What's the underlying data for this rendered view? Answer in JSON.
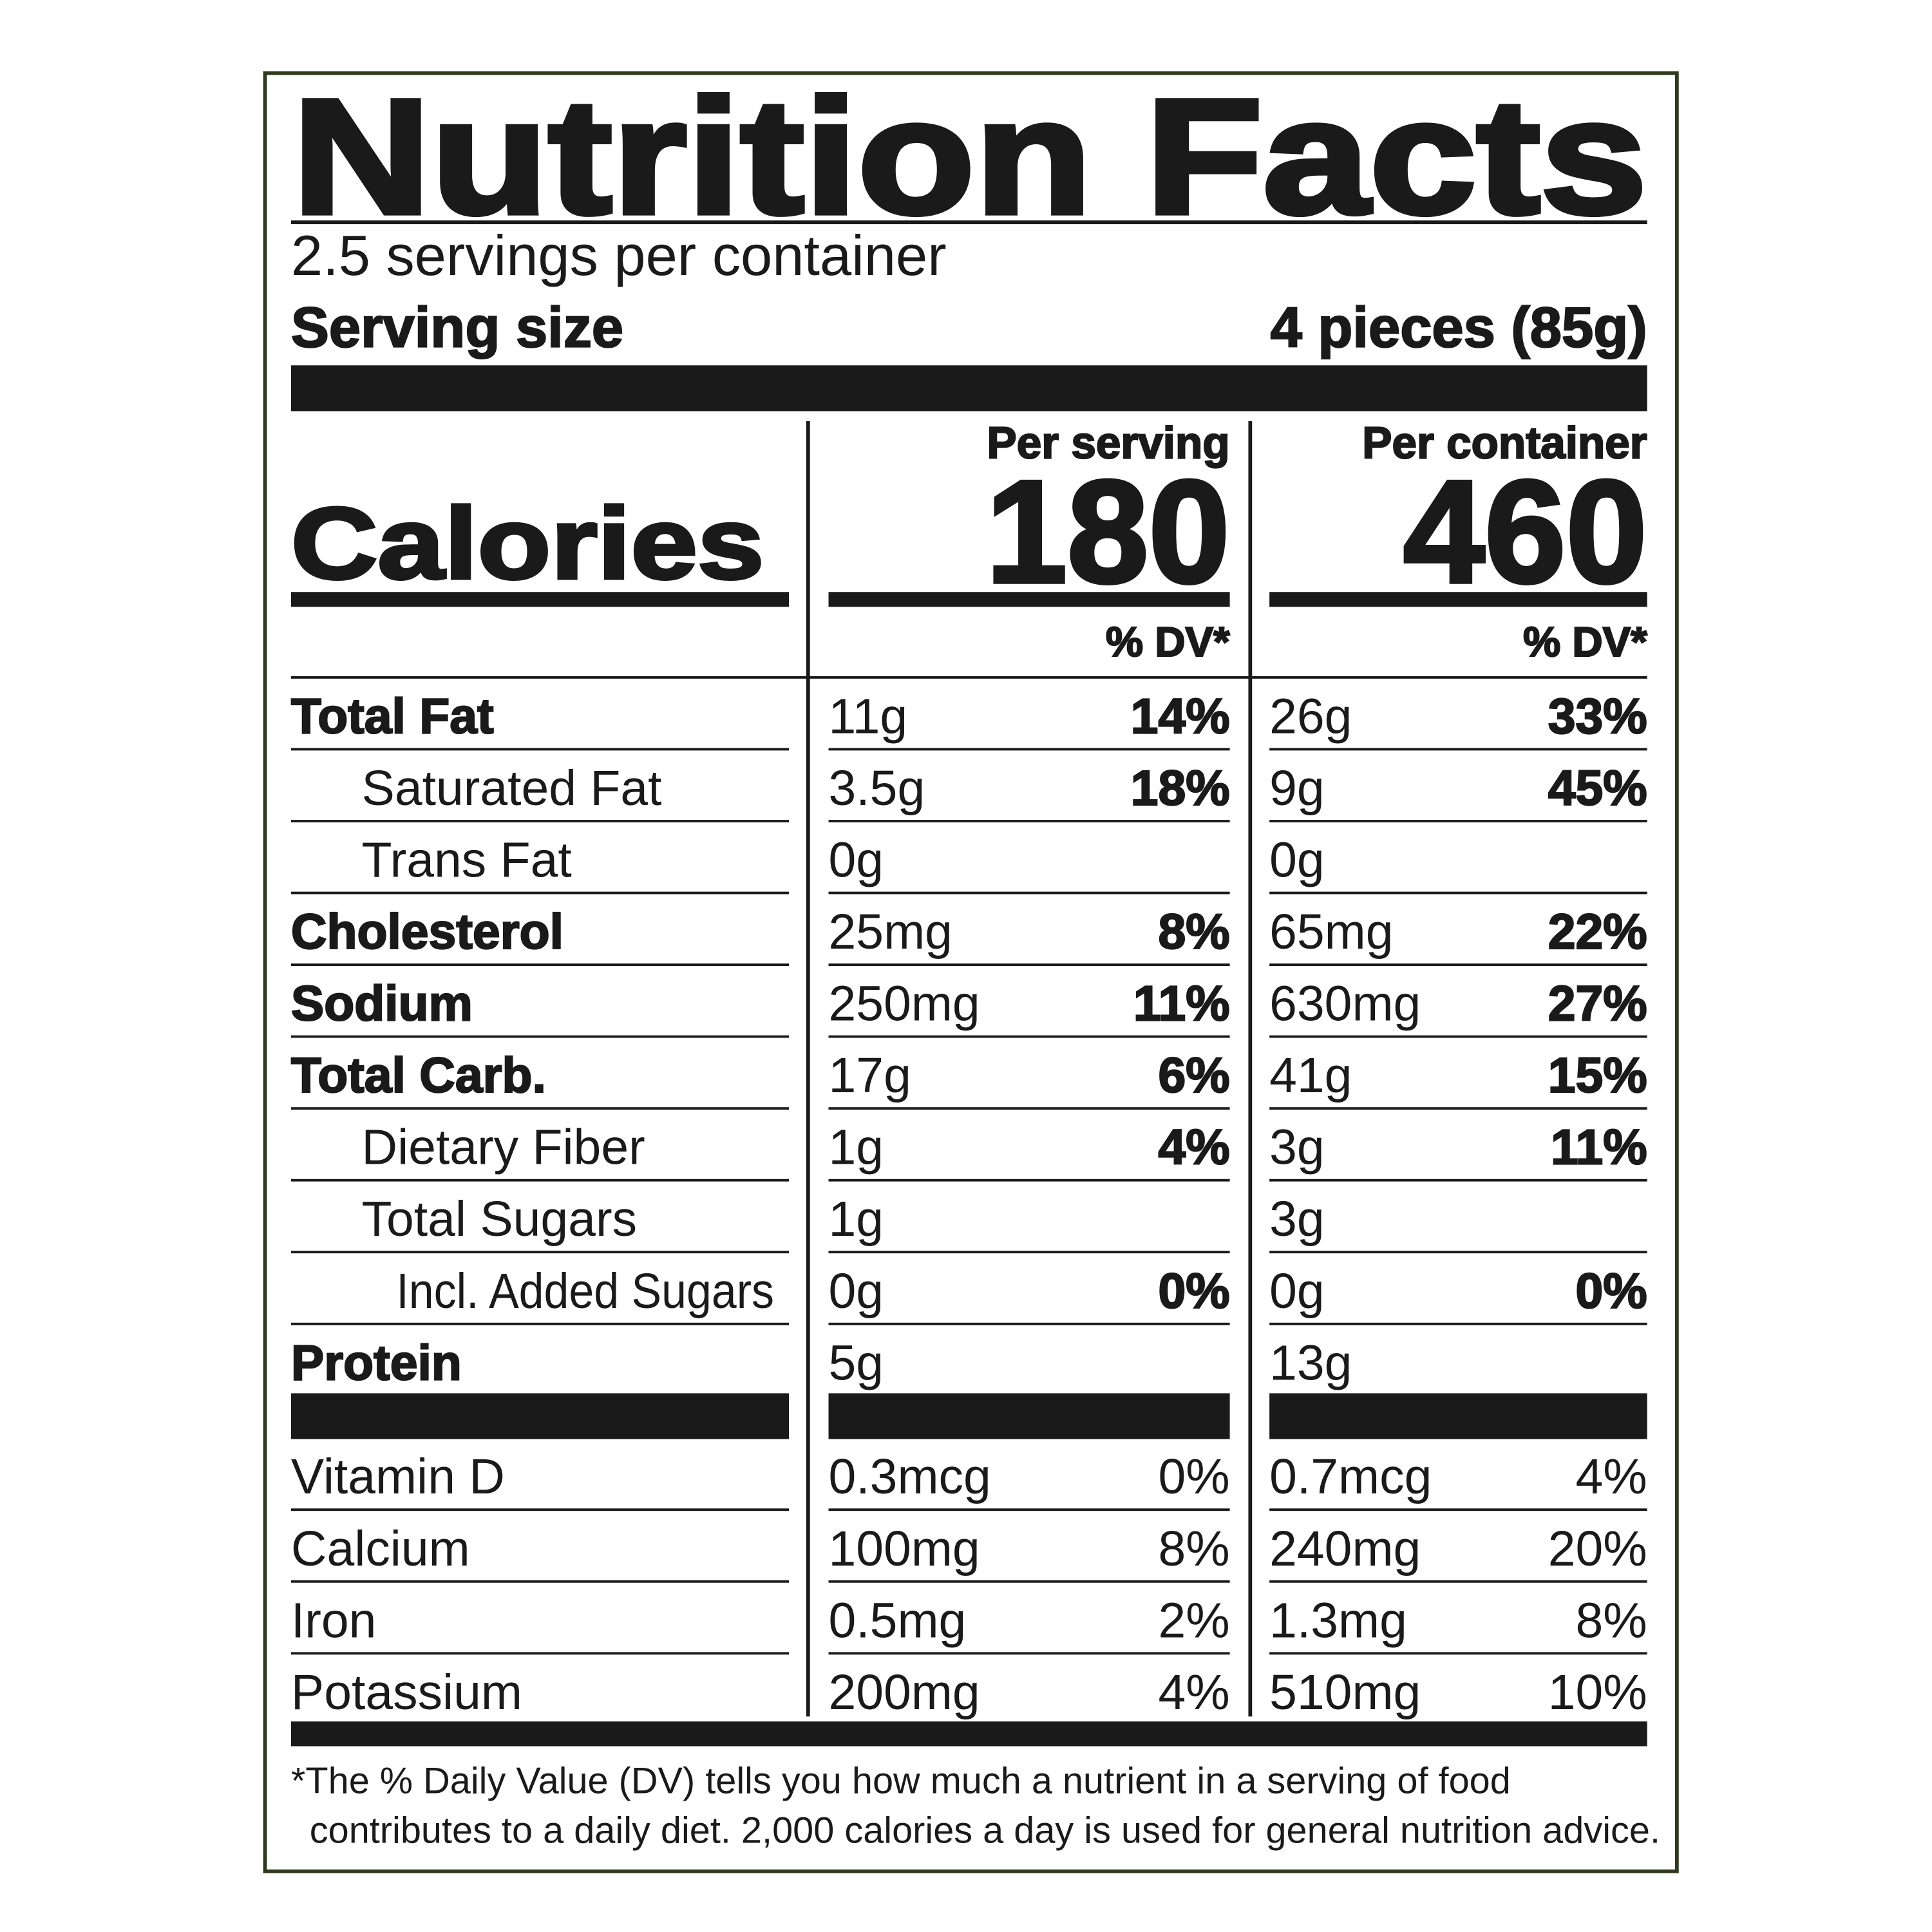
{
  "header": {
    "title": "Nutrition Facts",
    "servings": "2.5 servings per container",
    "serving_size_label": "Serving size",
    "serving_size_value": "4 pieces (85g)"
  },
  "calories_label": "Calories",
  "columns": [
    {
      "heading": "Per serving",
      "calories": 180,
      "dv_heading": "% DV*"
    },
    {
      "heading": "Per container",
      "calories": 460,
      "dv_heading": "% DV*"
    }
  ],
  "nutrients": [
    {
      "label": "Total Fat",
      "serving": {
        "amount": "11g",
        "dv": "14%"
      },
      "container": {
        "amount": "26g",
        "dv": "33%"
      }
    },
    {
      "label": "Saturated Fat",
      "serving": {
        "amount": "3.5g",
        "dv": "18%"
      },
      "container": {
        "amount": "9g",
        "dv": "45%"
      }
    },
    {
      "label": "Trans Fat",
      "serving": {
        "amount": "0g"
      },
      "container": {
        "amount": "0g"
      }
    },
    {
      "label": "Cholesterol",
      "serving": {
        "amount": "25mg",
        "dv": "8%"
      },
      "container": {
        "amount": "65mg",
        "dv": "22%"
      }
    },
    {
      "label": "Sodium",
      "serving": {
        "amount": "250mg",
        "dv": "11%"
      },
      "container": {
        "amount": "630mg",
        "dv": "27%"
      }
    },
    {
      "label": "Total Carb.",
      "serving": {
        "amount": "17g",
        "dv": "6%"
      },
      "container": {
        "amount": "41g",
        "dv": "15%"
      }
    },
    {
      "label": "Dietary Fiber",
      "serving": {
        "amount": "1g",
        "dv": "4%"
      },
      "container": {
        "amount": "3g",
        "dv": "11%"
      }
    },
    {
      "label": "Total Sugars",
      "serving": {
        "amount": "1g"
      },
      "container": {
        "amount": "3g"
      }
    },
    {
      "label": "Incl. Added Sugars",
      "serving": {
        "amount": "0g",
        "dv": "0%"
      },
      "container": {
        "amount": "0g",
        "dv": "0%"
      }
    },
    {
      "label": "Protein",
      "serving": {
        "amount": "5g"
      },
      "container": {
        "amount": "13g"
      }
    }
  ],
  "vitamins": [
    {
      "label": "Vitamin D",
      "serving": {
        "amount": "0.3mcg",
        "dv": "0%"
      },
      "container": {
        "amount": "0.7mcg",
        "dv": "4%"
      }
    },
    {
      "label": "Calcium",
      "serving": {
        "amount": "100mg",
        "dv": "8%"
      },
      "container": {
        "amount": "240mg",
        "dv": "20%"
      }
    },
    {
      "label": "Iron",
      "serving": {
        "amount": "0.5mg",
        "dv": "2%"
      },
      "container": {
        "amount": "1.3mg",
        "dv": "8%"
      }
    },
    {
      "label": "Potassium",
      "serving": {
        "amount": "200mg",
        "dv": "4%"
      },
      "container": {
        "amount": "510mg",
        "dv": "10%"
      }
    }
  ],
  "footnote": [
    "*The % Daily Value (DV) tells you how much a nutrient in a serving of food",
    "contributes to a daily diet. 2,000 calories a day is used for general nutrition advice."
  ]
}
